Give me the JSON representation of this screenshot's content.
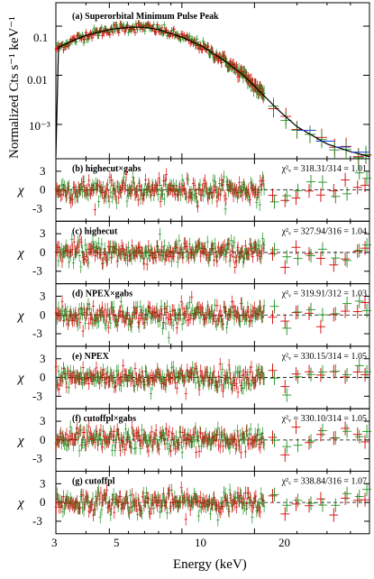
{
  "chart_data": {
    "type": "scatter",
    "xlabel": "Energy (keV)",
    "x_ticks": [
      "3",
      "5",
      "10",
      "20"
    ],
    "x_range": [
      3,
      60
    ],
    "x_scale": "log",
    "colors": {
      "series1": "#d40000",
      "series2": "#1f8f1f",
      "model": "#000000",
      "zero": "#000000"
    },
    "main_panel": {
      "title": "(a) Superorbital Minimum Pulse Peak",
      "ylabel": "Normalized Cts s⁻¹ keV⁻¹",
      "y_scale": "log",
      "y_range": [
        0.0002,
        0.3
      ],
      "y_ticks": [
        "0.1",
        "0.01",
        "10⁻³"
      ],
      "model_peak_energy": 6.5,
      "model_values": {
        "x": [
          3,
          3.5,
          4,
          5,
          6,
          7,
          8,
          10,
          12,
          15,
          18,
          20,
          25,
          30,
          40,
          50,
          60
        ],
        "y": [
          0.035,
          0.05,
          0.065,
          0.085,
          0.095,
          0.095,
          0.085,
          0.06,
          0.04,
          0.02,
          0.01,
          0.006,
          0.002,
          0.0009,
          0.0004,
          0.00028,
          0.00022
        ]
      }
    },
    "residual_panels": [
      {
        "title": "(b) highecut×gabs",
        "chi_label": "χ²ᵥ = 318.31/314 = 1.01"
      },
      {
        "title": "(c) highecut",
        "chi_label": "χ²ᵥ = 327.94/316 = 1.04"
      },
      {
        "title": "(d) NPEX×gabs",
        "chi_label": "χ²ᵥ = 319.91/312 = 1.03"
      },
      {
        "title": "(e) NPEX",
        "chi_label": "χ²ᵥ = 330.15/314 = 1.05"
      },
      {
        "title": "(f) cutoffpl×gabs",
        "chi_label": "χ²ᵥ = 330.10/314 = 1.05"
      },
      {
        "title": "(g) cutoffpl",
        "chi_label": "χ²ᵥ = 338.84/316 = 1.07"
      }
    ],
    "residual_ylabel": "χ",
    "residual_ticks": [
      "3",
      "0",
      "-3"
    ],
    "residual_range": [
      -5,
      5
    ]
  }
}
